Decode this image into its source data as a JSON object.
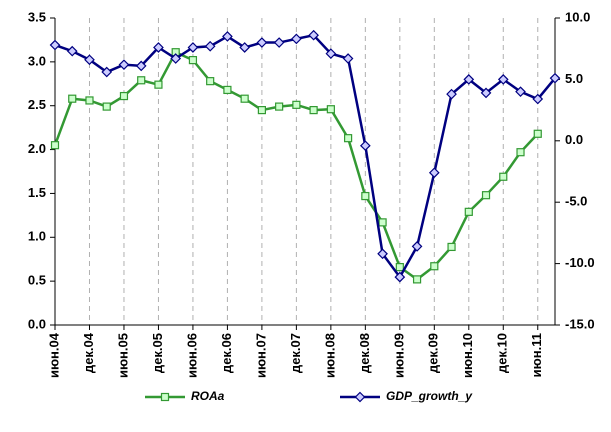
{
  "chart_data": {
    "type": "line",
    "categories": [
      "июн.04",
      null,
      "дек.04",
      null,
      "июн.05",
      null,
      "дек.05",
      null,
      "июн.06",
      null,
      "дек.06",
      null,
      "июн.07",
      null,
      "дек.07",
      null,
      "июн.08",
      null,
      "дек.08",
      null,
      "июн.09",
      null,
      "дек.09",
      null,
      "июн.10",
      null,
      "дек.10",
      null,
      "июн.11",
      null
    ],
    "series": [
      {
        "name": "ROAa",
        "color": "#339933",
        "marker_fill": "#ccffcc",
        "marker": "square",
        "values": [
          2.05,
          2.58,
          2.56,
          2.49,
          2.61,
          2.79,
          2.74,
          3.11,
          3.02,
          2.78,
          2.68,
          2.58,
          2.45,
          2.49,
          2.51,
          2.45,
          2.46,
          2.13,
          1.47,
          1.17,
          0.66,
          0.52,
          0.67,
          0.89,
          1.29,
          1.48,
          1.69,
          1.97,
          2.18,
          null
        ]
      },
      {
        "name": "GDP_growth_y",
        "color": "#000080",
        "marker_fill": "#ccccff",
        "marker": "diamond",
        "axis": "y2",
        "values": [
          7.8,
          7.3,
          6.6,
          5.6,
          6.2,
          6.1,
          7.6,
          6.7,
          7.6,
          7.7,
          8.5,
          7.6,
          8.0,
          8.0,
          8.3,
          8.6,
          7.1,
          6.7,
          -0.4,
          -9.2,
          -11.1,
          -8.6,
          -2.6,
          3.8,
          5.0,
          3.9,
          5.0,
          4.0,
          3.4,
          5.1
        ]
      }
    ],
    "ylim": [
      0,
      3.5
    ],
    "yticks": [
      {
        "value": 0,
        "label": "0.0"
      },
      0.5,
      {
        "value": 1,
        "label": "1.0"
      },
      1.5,
      {
        "value": 2,
        "label": "2.0"
      },
      2.5,
      {
        "value": 3,
        "label": "3.0"
      },
      3.5
    ],
    "y2lim": [
      -15,
      10
    ],
    "y2ticks": [
      {
        "value": -15,
        "label": "-15.0"
      },
      {
        "value": -10,
        "label": "-10.0"
      },
      {
        "value": -5,
        "label": "-5.0"
      },
      {
        "value": 0,
        "label": "0.0"
      },
      {
        "value": 5,
        "label": "5.0"
      },
      {
        "value": 10,
        "label": "10.0"
      }
    ],
    "grid": "x",
    "legend": "bottom"
  }
}
